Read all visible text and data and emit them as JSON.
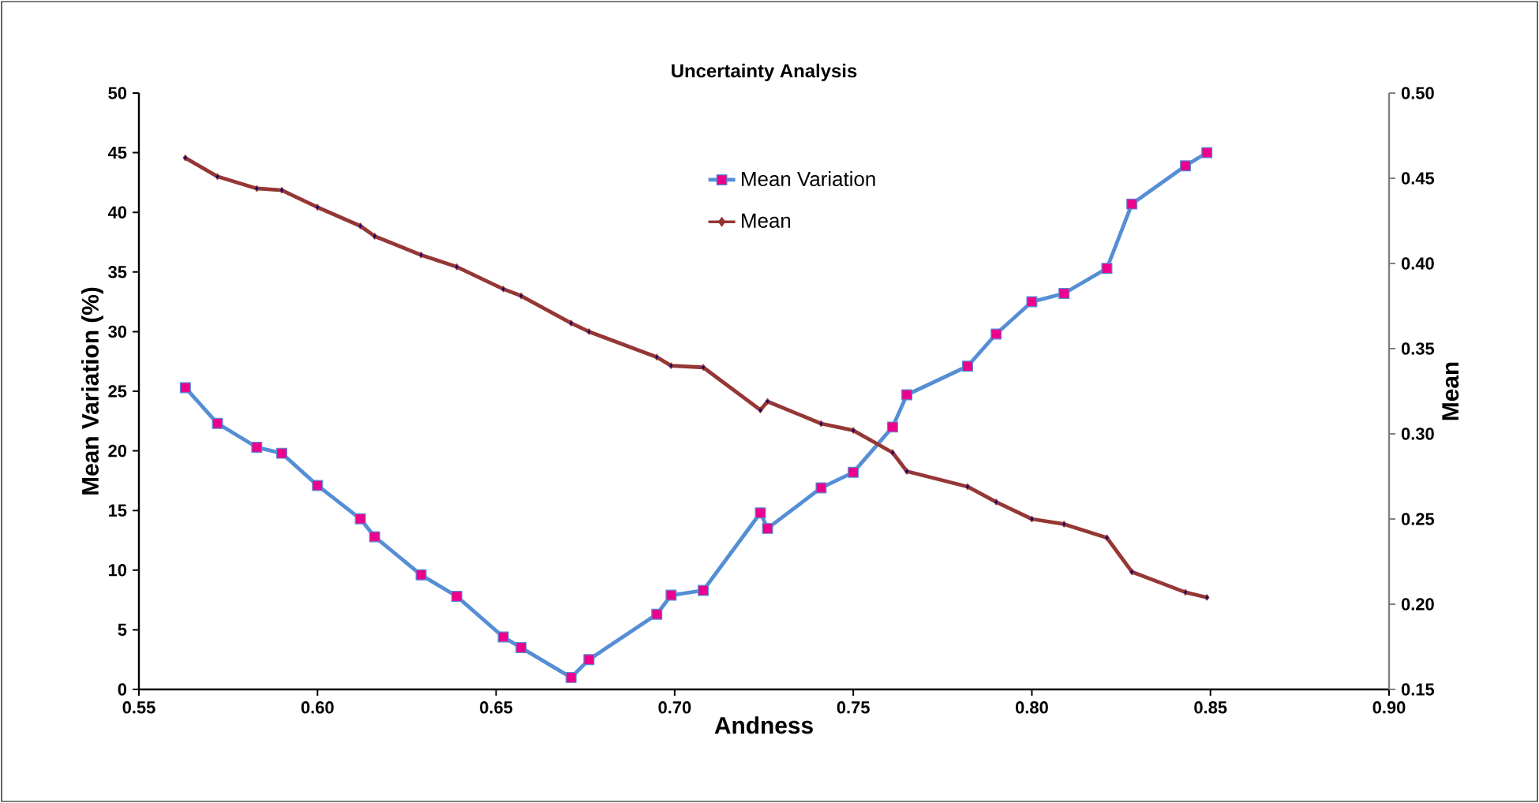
{
  "chart_data": {
    "type": "line",
    "title": "Uncertainty  Analysis",
    "xlabel": "Andness",
    "ylabel": "Mean Variation (%)",
    "y2label": "Mean",
    "xlim": [
      0.55,
      0.9
    ],
    "xticks": [
      0.55,
      {
        "value": 0.6,
        "label": "0.60"
      },
      0.65,
      {
        "value": 0.7,
        "label": "0.70"
      },
      0.75,
      {
        "value": 0.8,
        "label": "0.80"
      },
      0.85,
      {
        "value": 0.9,
        "label": "0.90"
      }
    ],
    "ylim": [
      0,
      50
    ],
    "yticks": [
      0,
      5,
      10,
      15,
      20,
      25,
      30,
      35,
      40,
      45,
      50
    ],
    "y2lim": [
      0.15,
      0.5
    ],
    "y2ticks": [
      0.15,
      {
        "value": 0.2,
        "label": "0.20"
      },
      0.25,
      {
        "value": 0.3,
        "label": "0.30"
      },
      0.35,
      {
        "value": 0.4,
        "label": "0.40"
      },
      0.45,
      {
        "value": 0.5,
        "label": "0.50"
      }
    ],
    "x": [
      0.563,
      0.572,
      0.583,
      0.59,
      0.6,
      0.612,
      0.616,
      0.629,
      0.639,
      0.652,
      0.657,
      0.671,
      0.676,
      0.695,
      0.699,
      0.708,
      0.724,
      0.726,
      0.741,
      0.75,
      0.761,
      0.765,
      0.782,
      0.79,
      0.8,
      0.809,
      0.821,
      0.828,
      0.843,
      0.849
    ],
    "legend": "top",
    "grid": false,
    "line_style": "solid",
    "series": [
      {
        "name": "Mean Variation",
        "color": "#558ed5",
        "marker": "square",
        "values": [
          25.3,
          22.3,
          20.3,
          19.8,
          17.1,
          14.3,
          12.8,
          9.6,
          7.8,
          4.4,
          3.5,
          1.0,
          2.5,
          6.3,
          7.9,
          8.3,
          14.8,
          13.5,
          16.9,
          18.2,
          22.0,
          24.7,
          27.1,
          29.8,
          32.5,
          33.2,
          35.3,
          40.7,
          43.9,
          45.0
        ]
      },
      {
        "name": "Mean",
        "color": "#953735",
        "marker": "diamond",
        "axis": "y2",
        "values": [
          0.462,
          0.451,
          0.444,
          0.443,
          0.433,
          0.422,
          0.416,
          0.405,
          0.398,
          0.385,
          0.381,
          0.365,
          0.36,
          0.345,
          0.34,
          0.339,
          0.314,
          0.319,
          0.306,
          0.302,
          0.289,
          0.278,
          0.269,
          0.26,
          0.25,
          0.247,
          0.239,
          0.219,
          0.207,
          0.204
        ]
      }
    ]
  }
}
